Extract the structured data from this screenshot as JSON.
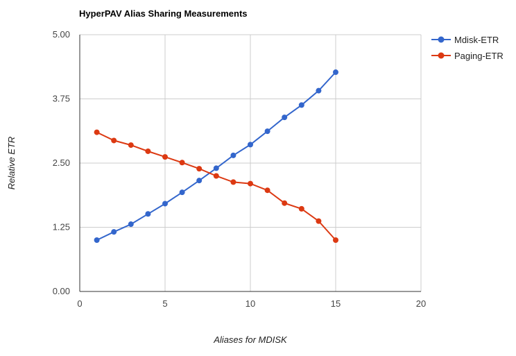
{
  "chart_data": {
    "type": "line",
    "title": "HyperPAV Alias Sharing Measurements",
    "xlabel": "Aliases for MDISK",
    "ylabel": "Relative ETR",
    "xlim": [
      0,
      20
    ],
    "ylim": [
      0,
      5
    ],
    "x_ticks": [
      "0",
      "5",
      "10",
      "15",
      "20"
    ],
    "y_ticks": [
      "0.00",
      "1.25",
      "2.50",
      "3.75",
      "5.00"
    ],
    "grid": true,
    "legend_position": "right",
    "series": [
      {
        "name": "Mdisk-ETR",
        "color": "#3366cc",
        "x": [
          1,
          2,
          3,
          4,
          5,
          6,
          7,
          8,
          9,
          10,
          11,
          12,
          13,
          14,
          15
        ],
        "values": [
          1.0,
          1.16,
          1.31,
          1.51,
          1.71,
          1.93,
          2.16,
          2.4,
          2.65,
          2.86,
          3.12,
          3.39,
          3.63,
          3.91,
          4.27
        ]
      },
      {
        "name": "Paging-ETR",
        "color": "#dc3912",
        "x": [
          1,
          2,
          3,
          4,
          5,
          6,
          7,
          8,
          9,
          10,
          11,
          12,
          13,
          14,
          15
        ],
        "values": [
          3.1,
          2.94,
          2.85,
          2.73,
          2.62,
          2.51,
          2.39,
          2.25,
          2.13,
          2.1,
          1.97,
          1.72,
          1.61,
          1.37,
          1.0
        ]
      }
    ]
  }
}
